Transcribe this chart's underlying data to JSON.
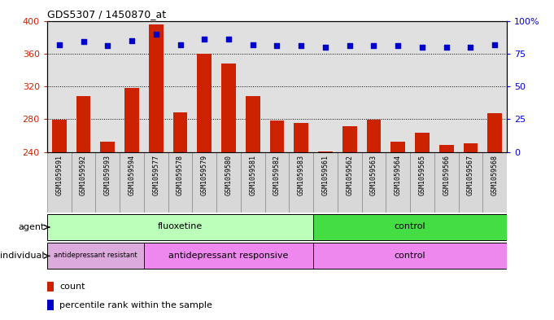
{
  "title": "GDS5307 / 1450870_at",
  "samples": [
    "GSM1059591",
    "GSM1059592",
    "GSM1059593",
    "GSM1059594",
    "GSM1059577",
    "GSM1059578",
    "GSM1059579",
    "GSM1059580",
    "GSM1059581",
    "GSM1059582",
    "GSM1059583",
    "GSM1059561",
    "GSM1059562",
    "GSM1059563",
    "GSM1059564",
    "GSM1059565",
    "GSM1059566",
    "GSM1059567",
    "GSM1059568"
  ],
  "counts": [
    279,
    308,
    253,
    318,
    396,
    288,
    360,
    348,
    308,
    278,
    275,
    241,
    271,
    279,
    253,
    264,
    249,
    251,
    287
  ],
  "percentiles": [
    82,
    84,
    81,
    85,
    90,
    82,
    86,
    86,
    82,
    81,
    81,
    80,
    81,
    81,
    81,
    80,
    80,
    80,
    82
  ],
  "bar_color": "#cc2200",
  "dot_color": "#0000cc",
  "ylim_left": [
    240,
    400
  ],
  "ylim_right": [
    0,
    100
  ],
  "yticks_left": [
    240,
    280,
    320,
    360,
    400
  ],
  "yticks_right": [
    0,
    25,
    50,
    75,
    100
  ],
  "grid_lines": [
    280,
    320,
    360
  ],
  "agent_groups": [
    {
      "label": "fluoxetine",
      "start": 0,
      "end": 11,
      "color": "#bbffbb"
    },
    {
      "label": "control",
      "start": 11,
      "end": 19,
      "color": "#44dd44"
    }
  ],
  "indiv_groups": [
    {
      "label": "antidepressant resistant",
      "start": 0,
      "end": 4,
      "color": "#ddaadd",
      "fontsize": 6
    },
    {
      "label": "antidepressant responsive",
      "start": 4,
      "end": 11,
      "color": "#ee88ee",
      "fontsize": 8
    },
    {
      "label": "control",
      "start": 11,
      "end": 19,
      "color": "#ee88ee",
      "fontsize": 8
    }
  ],
  "bar_width": 0.6,
  "background_color": "#ffffff",
  "plot_bg_color": "#e0e0e0",
  "tick_bg_color": "#d8d8d8"
}
